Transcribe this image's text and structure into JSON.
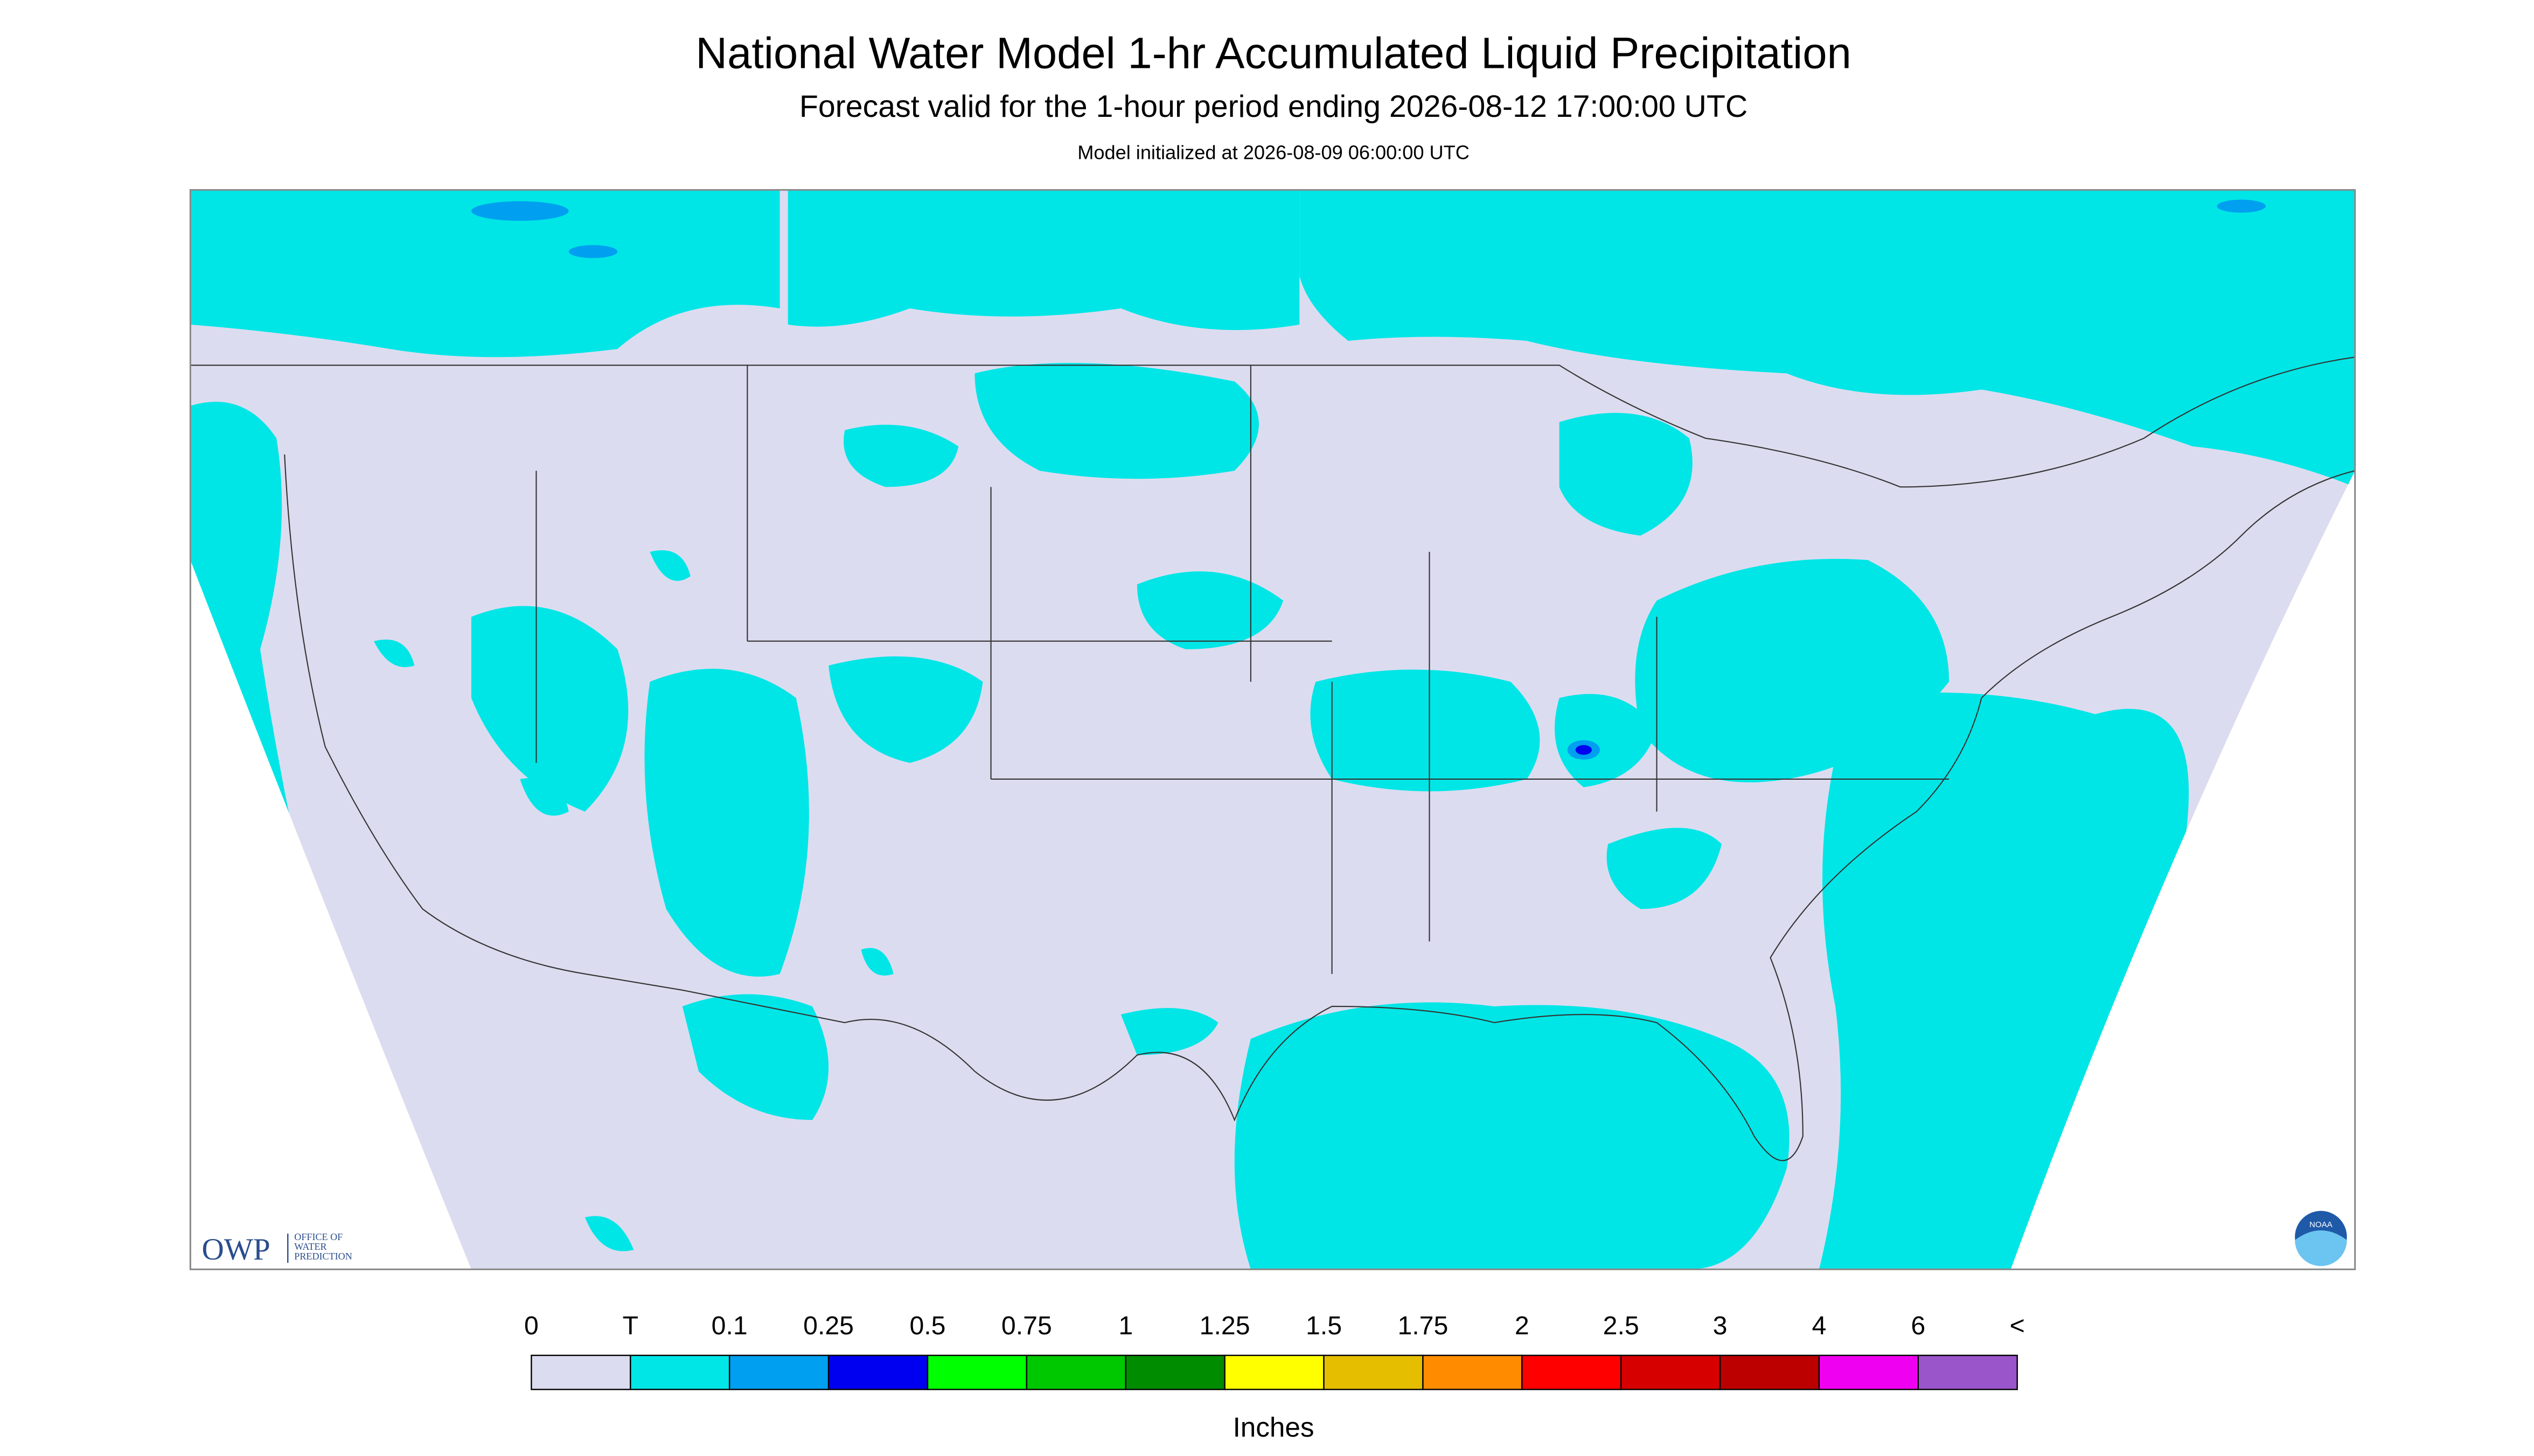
{
  "header": {
    "title": "National Water Model 1-hr Accumulated Liquid Precipitation",
    "subtitle": "Forecast valid for the 1-hour period ending 2026-08-12 17:00:00 UTC",
    "note": "Model initialized at 2026-08-09 06:00:00 UTC"
  },
  "logo": {
    "name": "OWP",
    "lines": [
      "OFFICE OF",
      "WATER",
      "PREDICTION"
    ],
    "badge": "NOAA"
  },
  "legend": {
    "labels": [
      "0",
      "T",
      "0.1",
      "0.25",
      "0.5",
      "0.75",
      "1",
      "1.25",
      "1.5",
      "1.75",
      "2",
      "2.5",
      "3",
      "4",
      "6",
      "<"
    ],
    "colors": [
      "#dcdcf0",
      "#00e6e6",
      "#009ff0",
      "#0000f0",
      "#00ff00",
      "#00c800",
      "#008c00",
      "#ffff00",
      "#e6be00",
      "#ff8c00",
      "#ff0000",
      "#d70000",
      "#bc0000",
      "#f000f0",
      "#9955c9"
    ],
    "unit": "Inches"
  }
}
